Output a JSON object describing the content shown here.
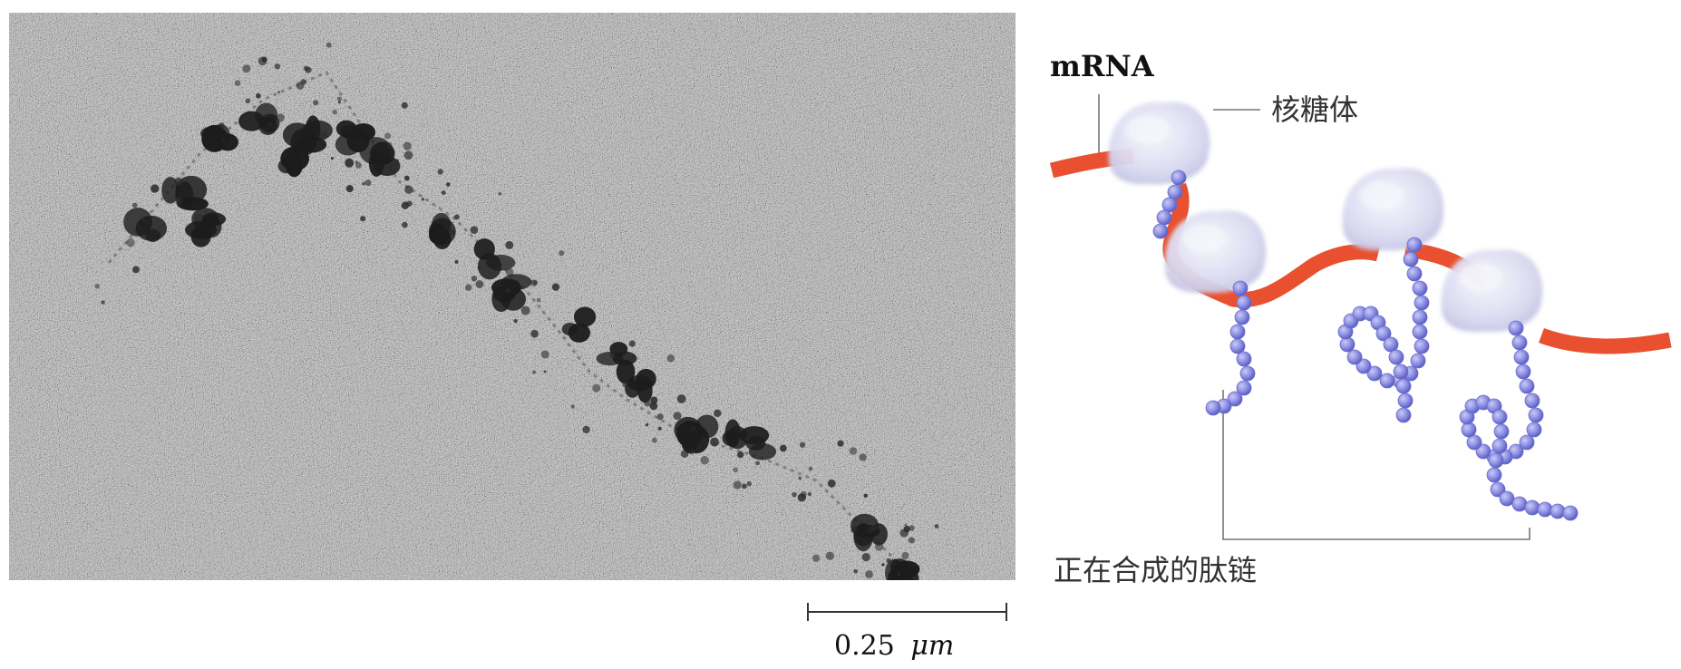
{
  "micrograph": {
    "scale_bar": {
      "value": "0.25",
      "unit": "μm"
    }
  },
  "diagram": {
    "labels": {
      "mrna": "mRNA",
      "ribosome": "核糖体",
      "peptide_chain": "正在合成的肽链"
    },
    "colors": {
      "mrna_strand": "#e8502f",
      "ribosome": "#dcdcf2",
      "peptide_bead": "#8c8ee3",
      "leader_line": "#777777",
      "micrograph_background": "#bbbbbb",
      "micrograph_particle": "#1c1c1c"
    },
    "ribosome_count": 4
  }
}
